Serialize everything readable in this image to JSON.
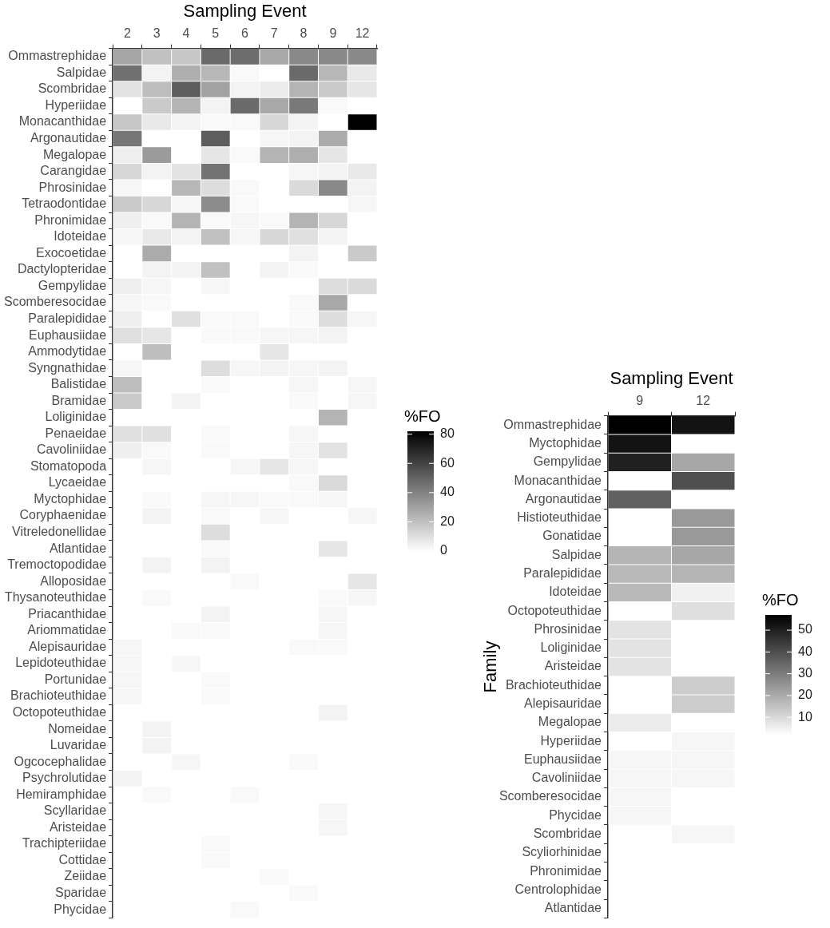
{
  "chart_data": [
    {
      "type": "heatmap",
      "xlabel": "Sampling Event",
      "clabel": "%FO",
      "categories": [
        "2",
        "3",
        "4",
        "5",
        "6",
        "7",
        "8",
        "9",
        "12"
      ],
      "y_categories": [
        "Ommastrephidae",
        "Salpidae",
        "Scombridae",
        "Hyperiidae",
        "Monacanthidae",
        "Argonautidae",
        "Megalopae",
        "Carangidae",
        "Phrosinidae",
        "Tetraodontidae",
        "Phronimidae",
        "Idoteidae",
        "Exocoetidae",
        "Dactylopteridae",
        "Gempylidae",
        "Scomberesocidae",
        "Paralepididae",
        "Euphausiidae",
        "Ammodytidae",
        "Syngnathidae",
        "Balistidae",
        "Bramidae",
        "Loliginidae",
        "Penaeidae",
        "Cavoliniidae",
        "Stomatopoda",
        "Lycaeidae",
        "Myctophidae",
        "Coryphaenidae",
        "Vitreledonellidae",
        "Atlantidae",
        "Tremoctopodidae",
        "Alloposidae",
        "Thysanoteuthidae",
        "Priacanthidae",
        "Ariommatidae",
        "Alepisauridae",
        "Lepidoteuthidae",
        "Portunidae",
        "Brachioteuthidae",
        "Octopoteuthidae",
        "Nomeidae",
        "Luvaridae",
        "Ogcocephalidae",
        "Psychrolutidae",
        "Hemiramphidae",
        "Scyllaridae",
        "Aristeidae",
        "Trachipteriidae",
        "Cottidae",
        "Zeiidae",
        "Sparidae",
        "Phycidae"
      ],
      "cells": [
        [
          29,
          20,
          18,
          48,
          47,
          28,
          38,
          38,
          38
        ],
        [
          46,
          4,
          26,
          23,
          2,
          null,
          48,
          23,
          7
        ],
        [
          9,
          21,
          52,
          30,
          4,
          6,
          24,
          17,
          8
        ],
        [
          null,
          17,
          24,
          4,
          48,
          28,
          43,
          2,
          null
        ],
        [
          18,
          7,
          4,
          2,
          2,
          13,
          4,
          null,
          82
        ],
        [
          44,
          null,
          null,
          52,
          null,
          3,
          4,
          27,
          null
        ],
        [
          5,
          32,
          null,
          8,
          2,
          24,
          26,
          8,
          null
        ],
        [
          13,
          4,
          9,
          45,
          null,
          null,
          3,
          4,
          7
        ],
        [
          3,
          null,
          23,
          11,
          2,
          null,
          12,
          38,
          4
        ],
        [
          17,
          13,
          3,
          37,
          2,
          null,
          null,
          null,
          3
        ],
        [
          5,
          2,
          24,
          2,
          3,
          2,
          24,
          13,
          null
        ],
        [
          3,
          7,
          4,
          20,
          3,
          13,
          10,
          4,
          null
        ],
        [
          null,
          27,
          null,
          null,
          null,
          null,
          4,
          null,
          17
        ],
        [
          null,
          4,
          4,
          20,
          null,
          4,
          2,
          null,
          null
        ],
        [
          5,
          3,
          null,
          3,
          null,
          null,
          null,
          11,
          12
        ],
        [
          3,
          2,
          null,
          null,
          null,
          null,
          2,
          28,
          null
        ],
        [
          5,
          null,
          10,
          2,
          2,
          null,
          2,
          11,
          3
        ],
        [
          10,
          8,
          null,
          2,
          2,
          3,
          3,
          4,
          null
        ],
        [
          null,
          21,
          null,
          null,
          null,
          8,
          null,
          null,
          null
        ],
        [
          3,
          null,
          null,
          11,
          3,
          4,
          3,
          4,
          null
        ],
        [
          21,
          null,
          null,
          2,
          null,
          null,
          3,
          null,
          3
        ],
        [
          17,
          null,
          4,
          null,
          null,
          null,
          2,
          null,
          3
        ],
        [
          null,
          null,
          null,
          null,
          null,
          null,
          null,
          24,
          null
        ],
        [
          10,
          10,
          null,
          2,
          null,
          null,
          3,
          null,
          null
        ],
        [
          5,
          2,
          null,
          2,
          null,
          null,
          3,
          9,
          null
        ],
        [
          null,
          3,
          null,
          null,
          3,
          8,
          3,
          null,
          null
        ],
        [
          null,
          null,
          null,
          null,
          null,
          null,
          2,
          12,
          null
        ],
        [
          null,
          2,
          null,
          3,
          3,
          2,
          2,
          3,
          null
        ],
        [
          null,
          4,
          null,
          2,
          null,
          3,
          null,
          null,
          3
        ],
        [
          null,
          null,
          null,
          11,
          null,
          null,
          null,
          null,
          null
        ],
        [
          null,
          null,
          null,
          2,
          null,
          null,
          null,
          8,
          null
        ],
        [
          null,
          4,
          null,
          4,
          null,
          null,
          null,
          null,
          null
        ],
        [
          null,
          null,
          null,
          null,
          2,
          null,
          null,
          null,
          8
        ],
        [
          null,
          2,
          null,
          null,
          null,
          null,
          null,
          2,
          3
        ],
        [
          null,
          null,
          null,
          4,
          null,
          null,
          null,
          3,
          null
        ],
        [
          null,
          null,
          2,
          2,
          null,
          null,
          null,
          3,
          null
        ],
        [
          3,
          null,
          null,
          null,
          null,
          null,
          2,
          2,
          null
        ],
        [
          3,
          null,
          3,
          null,
          null,
          null,
          null,
          null,
          null
        ],
        [
          3,
          null,
          null,
          2,
          null,
          null,
          null,
          null,
          null
        ],
        [
          3,
          null,
          null,
          2,
          null,
          null,
          null,
          null,
          null
        ],
        [
          null,
          null,
          null,
          null,
          null,
          null,
          null,
          4,
          null
        ],
        [
          null,
          4,
          null,
          null,
          null,
          null,
          null,
          null,
          null
        ],
        [
          null,
          4,
          null,
          null,
          null,
          null,
          null,
          null,
          null
        ],
        [
          null,
          null,
          3,
          null,
          null,
          null,
          2,
          null,
          null
        ],
        [
          4,
          null,
          null,
          null,
          null,
          null,
          null,
          null,
          null
        ],
        [
          null,
          2,
          null,
          null,
          2,
          null,
          null,
          null,
          null
        ],
        [
          null,
          null,
          null,
          null,
          null,
          null,
          null,
          3,
          null
        ],
        [
          null,
          null,
          null,
          null,
          null,
          null,
          null,
          3,
          null
        ],
        [
          null,
          null,
          null,
          2,
          null,
          null,
          null,
          null,
          null
        ],
        [
          null,
          null,
          null,
          2,
          null,
          null,
          null,
          null,
          null
        ],
        [
          null,
          null,
          null,
          null,
          null,
          2,
          null,
          null,
          null
        ],
        [
          null,
          null,
          null,
          null,
          null,
          null,
          2,
          null,
          null
        ],
        [
          null,
          null,
          null,
          null,
          2,
          null,
          null,
          null,
          null
        ]
      ],
      "clim": [
        0,
        82
      ],
      "cticks": [
        0,
        20,
        40,
        60,
        80
      ]
    },
    {
      "type": "heatmap",
      "xlabel": "Sampling Event",
      "ylabel": "Family",
      "clabel": "%FO",
      "categories": [
        "9",
        "12"
      ],
      "y_categories": [
        "Ommastrephidae",
        "Myctophidae",
        "Gempylidae",
        "Monacanthidae",
        "Argonautidae",
        "Histioteuthidae",
        "Gonatidae",
        "Salpidae",
        "Paralepididae",
        "Idoteidae",
        "Octopoteuthidae",
        "Phrosinidae",
        "Loliginidae",
        "Aristeidae",
        "Brachioteuthidae",
        "Alepisauridae",
        "Megalopae",
        "Hyperiidae",
        "Euphausiidae",
        "Cavoliniidae",
        "Scomberesocidae",
        "Phycidae",
        "Scombridae",
        "Scyliorhinidae",
        "Phronimidae",
        "Centrolophidae",
        "Atlantidae"
      ],
      "cells": [
        [
          57,
          53
        ],
        [
          53,
          null
        ],
        [
          50,
          21
        ],
        [
          null,
          40
        ],
        [
          36,
          null
        ],
        [
          null,
          24
        ],
        [
          null,
          24
        ],
        [
          18,
          21
        ],
        [
          17,
          18
        ],
        [
          17,
          5
        ],
        [
          null,
          9
        ],
        [
          8,
          null
        ],
        [
          8,
          null
        ],
        [
          8,
          null
        ],
        [
          null,
          13
        ],
        [
          null,
          13
        ],
        [
          6,
          null
        ],
        [
          null,
          4
        ],
        [
          4,
          4
        ],
        [
          4,
          4
        ],
        [
          4,
          null
        ],
        [
          4,
          null
        ],
        [
          null,
          4
        ],
        [
          null,
          null
        ],
        [
          null,
          null
        ],
        [
          null,
          null
        ],
        [
          null,
          null
        ]
      ],
      "clim": [
        2,
        57
      ],
      "cticks": [
        10,
        20,
        30,
        40,
        50
      ]
    }
  ]
}
